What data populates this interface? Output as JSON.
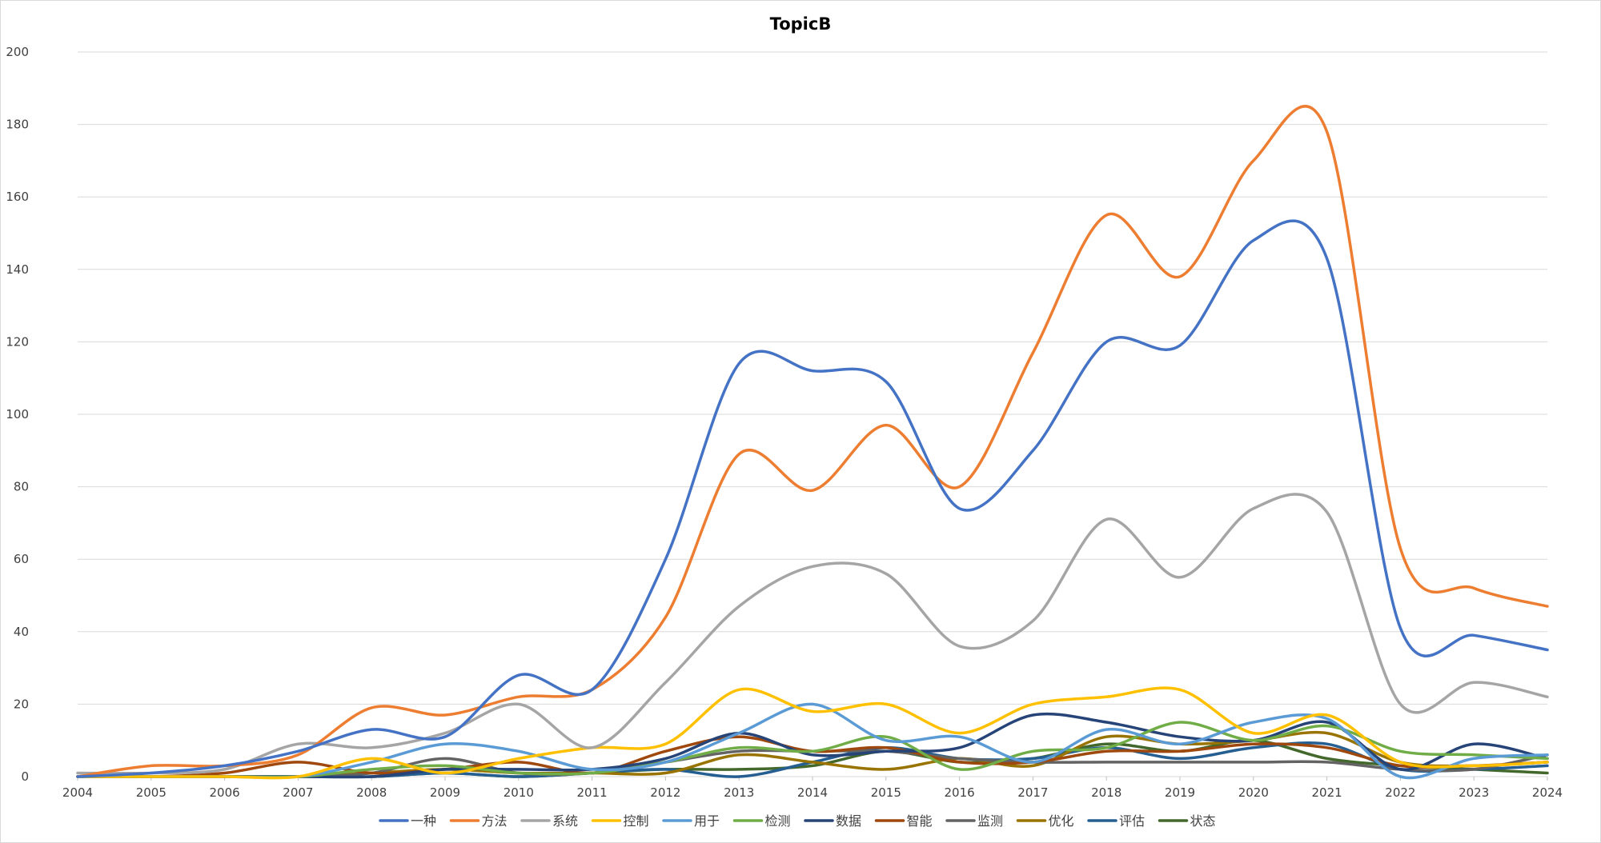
{
  "chart_data": {
    "type": "line",
    "title": "TopicB",
    "xlabel": "",
    "ylabel": "",
    "ylim": [
      0,
      200
    ],
    "y_ticks": [
      0,
      20,
      40,
      60,
      80,
      100,
      120,
      140,
      160,
      180,
      200
    ],
    "grid": true,
    "smooth": true,
    "legend_position": "bottom",
    "categories": [
      "2004",
      "2005",
      "2006",
      "2007",
      "2008",
      "2009",
      "2010",
      "2011",
      "2012",
      "2013",
      "2014",
      "2015",
      "2016",
      "2017",
      "2018",
      "2019",
      "2020",
      "2021",
      "2022",
      "2023",
      "2024"
    ],
    "series": [
      {
        "name": "一种",
        "color": "#4472C4",
        "values": [
          0,
          1,
          3,
          7,
          13,
          11,
          28,
          24,
          60,
          114,
          112,
          109,
          74,
          90,
          120,
          119,
          148,
          143,
          41,
          39,
          35
        ]
      },
      {
        "name": "方法",
        "color": "#ED7D31",
        "values": [
          0,
          3,
          3,
          6,
          19,
          17,
          22,
          24,
          44,
          89,
          79,
          97,
          80,
          117,
          155,
          138,
          170,
          178,
          63,
          52,
          47
        ]
      },
      {
        "name": "系统",
        "color": "#A5A5A5",
        "values": [
          1,
          1,
          2,
          9,
          8,
          12,
          20,
          8,
          26,
          47,
          58,
          56,
          36,
          43,
          71,
          55,
          74,
          73,
          20,
          26,
          22
        ]
      },
      {
        "name": "控制",
        "color": "#FFC000",
        "values": [
          0,
          0,
          0,
          0,
          5,
          1,
          5,
          8,
          9,
          24,
          18,
          20,
          12,
          20,
          22,
          24,
          12,
          17,
          4,
          3,
          4
        ]
      },
      {
        "name": "用于",
        "color": "#5B9BD5",
        "values": [
          0,
          0,
          0,
          0,
          4,
          9,
          7,
          2,
          4,
          12,
          20,
          10,
          11,
          4,
          13,
          9,
          15,
          16,
          0,
          5,
          6
        ]
      },
      {
        "name": "检测",
        "color": "#70AD47",
        "values": [
          0,
          0,
          0,
          0,
          2,
          3,
          1,
          1,
          4,
          8,
          7,
          11,
          2,
          7,
          8,
          15,
          10,
          14,
          7,
          6,
          5
        ]
      },
      {
        "name": "数据",
        "color": "#264478",
        "values": [
          0,
          0,
          0,
          0,
          0,
          2,
          2,
          2,
          5,
          12,
          6,
          7,
          8,
          17,
          15,
          11,
          10,
          15,
          2,
          9,
          5
        ]
      },
      {
        "name": "智能",
        "color": "#9E480E",
        "values": [
          0,
          0,
          1,
          4,
          1,
          2,
          4,
          1,
          7,
          11,
          7,
          8,
          4,
          4,
          7,
          7,
          9,
          8,
          3,
          3,
          4
        ]
      },
      {
        "name": "监测",
        "color": "#636363",
        "values": [
          0,
          0,
          0,
          0,
          1,
          5,
          1,
          1,
          4,
          7,
          7,
          7,
          5,
          4,
          4,
          4,
          4,
          4,
          2,
          2,
          6
        ]
      },
      {
        "name": "优化",
        "color": "#997300",
        "values": [
          0,
          0,
          0,
          0,
          1,
          2,
          1,
          1,
          1,
          6,
          4,
          2,
          5,
          3,
          11,
          9,
          10,
          12,
          4,
          3,
          4
        ]
      },
      {
        "name": "评估",
        "color": "#255E91",
        "values": [
          0,
          0,
          0,
          0,
          0,
          1,
          0,
          1,
          2,
          0,
          4,
          8,
          5,
          5,
          8,
          5,
          8,
          9,
          2,
          2,
          3
        ]
      },
      {
        "name": "状态",
        "color": "#43682B",
        "values": [
          0,
          0,
          0,
          0,
          0,
          1,
          0,
          1,
          2,
          2,
          3,
          7,
          4,
          5,
          9,
          7,
          10,
          5,
          3,
          2,
          1
        ]
      }
    ]
  }
}
